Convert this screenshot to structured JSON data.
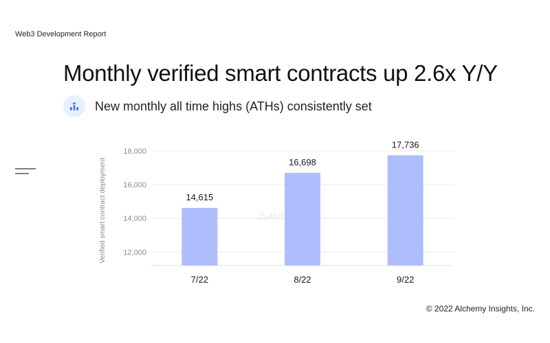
{
  "header": {
    "report_label": "Web3 Development Report",
    "title": "Monthly verified smart contracts up 2.6x Y/Y",
    "subtitle": "New monthly all time highs (ATHs) consistently set",
    "badge_icon": "bar-chart-up-icon"
  },
  "menu_icon": "menu-lines-icon",
  "watermark": "Alchemy",
  "footer": {
    "copyright": "© 2022 Alchemy Insights, Inc."
  },
  "colors": {
    "bar": "#aebdfb",
    "grid": "#ececec",
    "accent": "#3b6cf6",
    "badge_bg": "#e8efff"
  },
  "chart_data": {
    "type": "bar",
    "categories": [
      "7/22",
      "8/22",
      "9/22"
    ],
    "values": [
      14615,
      16698,
      17736
    ],
    "value_labels": [
      "14,615",
      "16,698",
      "17,736"
    ],
    "ylabel": "Verified smart contract deployment",
    "xlabel": "",
    "yticks": [
      12000,
      14000,
      16000,
      18000
    ],
    "ytick_labels": [
      "12,000",
      "14,000",
      "16,000",
      "18,000"
    ],
    "ylim": [
      11200,
      18200
    ],
    "grid": true
  }
}
